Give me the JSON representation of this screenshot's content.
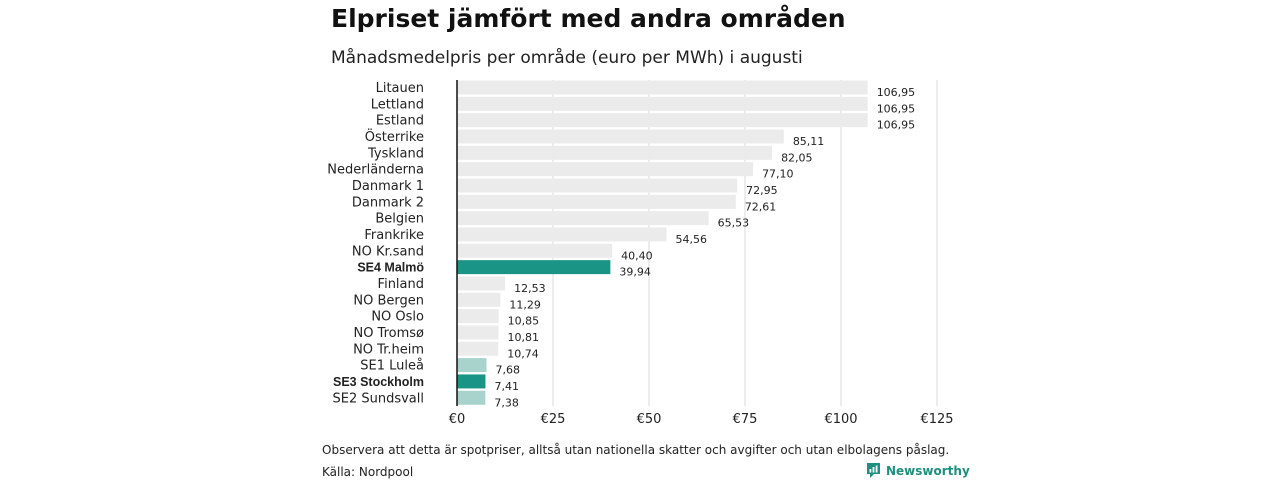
{
  "header": {
    "title": "Elpriset jämfört med andra områden",
    "subtitle": "Månadsmedelpris per område (euro per MWh) i augusti"
  },
  "footer": {
    "note": "Observera att detta är spotpriser, alltså utan nationella skatter och avgifter och utan elbolagens påslag.",
    "source": "Källa: Nordpool",
    "brand": "Newsworthy",
    "brand_icon": "newsworthy-logo-icon"
  },
  "colors": {
    "default_bar": "#ebebeb",
    "highlight_bar": "#1a9585",
    "light_bar": "#a8d3cd",
    "grid": "#d9d9d9",
    "axis": "#111111"
  },
  "chart_data": {
    "type": "bar",
    "orientation": "horizontal",
    "categories": [
      "Litauen",
      "Lettland",
      "Estland",
      "Österrike",
      "Tyskland",
      "Nederländerna",
      "Danmark  1",
      "Danmark  2",
      "Belgien",
      "Frankrike",
      "NO Kr.sand",
      "SE4 Malmö",
      "Finland",
      "NO Bergen",
      "NO Oslo",
      "NO Tromsø",
      "NO Tr.heim",
      "SE1  Luleå",
      "SE3 Stockholm",
      "SE2  Sundsvall"
    ],
    "values": [
      106.95,
      106.95,
      106.95,
      85.11,
      82.05,
      77.1,
      72.95,
      72.61,
      65.53,
      54.56,
      40.4,
      39.94,
      12.53,
      11.29,
      10.85,
      10.81,
      10.74,
      7.68,
      7.41,
      7.38
    ],
    "value_labels": [
      "106,95",
      "106,95",
      "106,95",
      "85,11",
      "82,05",
      "77,10",
      "72,95",
      "72,61",
      "65,53",
      "54,56",
      "40,40",
      "39,94",
      "12,53",
      "11,29",
      "10,85",
      "10,81",
      "10,74",
      "7,68",
      "7,41",
      "7,38"
    ],
    "bar_style": [
      "default",
      "default",
      "default",
      "default",
      "default",
      "default",
      "default",
      "default",
      "default",
      "default",
      "default",
      "highlight",
      "default",
      "default",
      "default",
      "default",
      "default",
      "light",
      "highlight",
      "light"
    ],
    "bold_labels": [
      false,
      false,
      false,
      false,
      false,
      false,
      false,
      false,
      false,
      false,
      false,
      true,
      false,
      false,
      false,
      false,
      false,
      false,
      true,
      false
    ],
    "xlim": [
      0,
      125
    ],
    "xticks": [
      0,
      25,
      50,
      75,
      100,
      125
    ],
    "xtick_labels": [
      "€0",
      "€25",
      "€50",
      "€75",
      "€100",
      "€125"
    ],
    "grid": "vertical",
    "legend": "none"
  }
}
